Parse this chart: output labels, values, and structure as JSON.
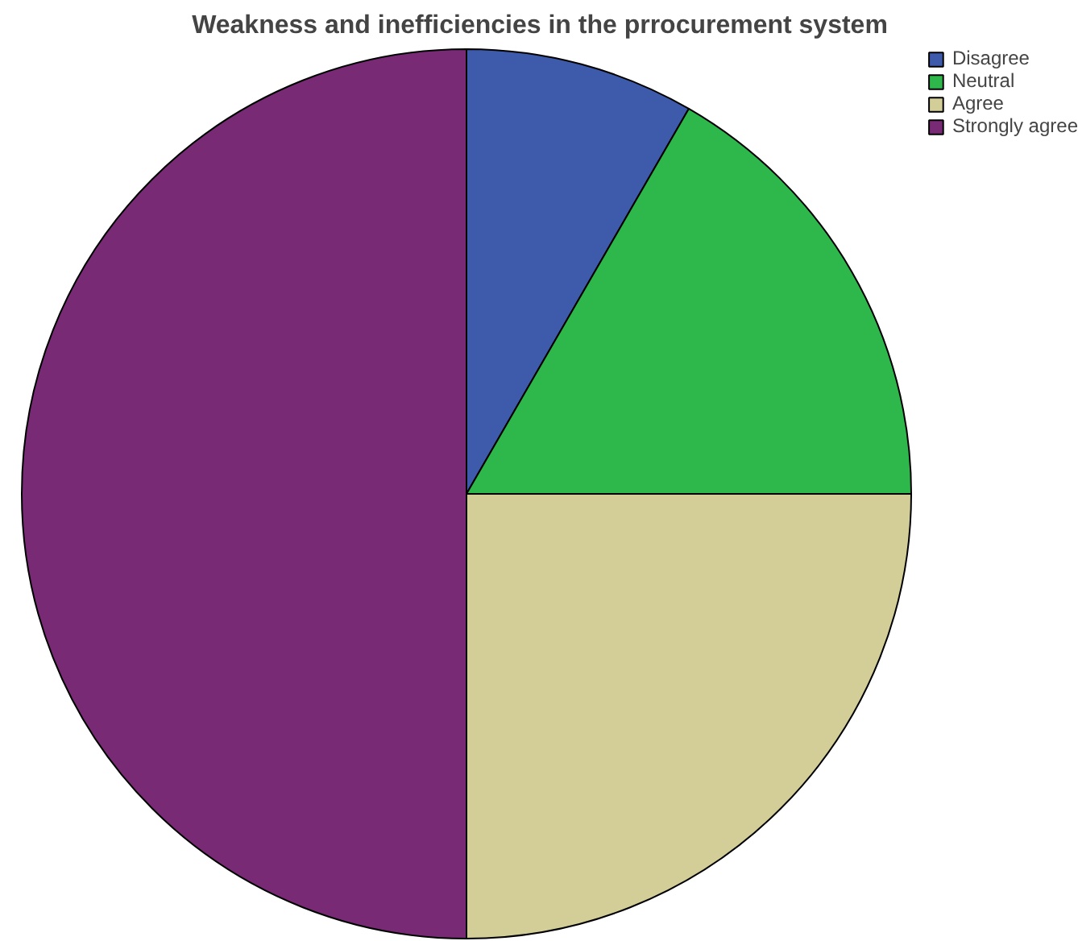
{
  "chart_data": {
    "type": "pie",
    "title": "Weakness and inefficiencies in the prrocurement system",
    "categories": [
      "Disagree",
      "Neutral",
      "Agree",
      "Strongly agree"
    ],
    "values": [
      8.33,
      16.67,
      25,
      50
    ],
    "colors": [
      "#3e5aab",
      "#2eb84b",
      "#d3ce97",
      "#782a75"
    ],
    "legend": "top right"
  }
}
